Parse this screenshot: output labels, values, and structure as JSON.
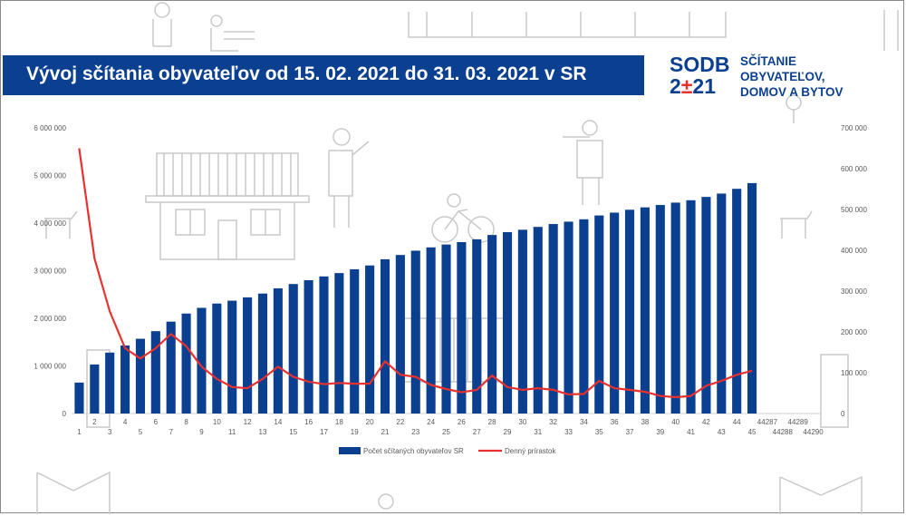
{
  "title": "Vývoj sčítania obyvateľov od 15. 02. 2021 do 31. 03. 2021 v SR",
  "logo": {
    "mark_line1": "SODB",
    "mark_line2_a": "2",
    "mark_line2_b": "±",
    "mark_line2_c": "21",
    "text_line1": "SČÍTANIE",
    "text_line2": "OBYVATEĽOV,",
    "text_line3": "DOMOV A BYTOV"
  },
  "colors": {
    "bar": "#0b3f8f",
    "line": "#e8312f",
    "banner": "#0b3f8f"
  },
  "chart_data": {
    "type": "bar",
    "categories": [
      1,
      2,
      3,
      4,
      5,
      6,
      7,
      8,
      9,
      10,
      11,
      12,
      13,
      14,
      15,
      16,
      17,
      18,
      19,
      20,
      21,
      22,
      23,
      24,
      25,
      26,
      27,
      28,
      29,
      30,
      31,
      32,
      33,
      34,
      35,
      36,
      37,
      38,
      39,
      40,
      41,
      42,
      43,
      44,
      45
    ],
    "extra_ticks": [
      {
        "after_index": 45,
        "label": "44287",
        "row": 0
      },
      {
        "after_index": 46,
        "label": "44288",
        "row": 1
      },
      {
        "after_index": 47,
        "label": "44289",
        "row": 0
      },
      {
        "after_index": 48,
        "label": "44290",
        "row": 1
      }
    ],
    "series": [
      {
        "name": "Počet sčítaných obyvateľov SR",
        "type": "bar",
        "axis": "left",
        "values": [
          650000,
          1030000,
          1280000,
          1430000,
          1570000,
          1730000,
          1930000,
          2100000,
          2220000,
          2310000,
          2370000,
          2440000,
          2520000,
          2630000,
          2720000,
          2800000,
          2880000,
          2950000,
          3030000,
          3110000,
          3240000,
          3330000,
          3420000,
          3490000,
          3550000,
          3600000,
          3660000,
          3750000,
          3810000,
          3860000,
          3920000,
          3980000,
          4030000,
          4080000,
          4160000,
          4220000,
          4280000,
          4330000,
          4380000,
          4430000,
          4480000,
          4550000,
          4620000,
          4720000,
          4840000
        ]
      },
      {
        "name": "Denný prírastok",
        "type": "line",
        "axis": "right",
        "values": [
          650000,
          380000,
          250000,
          160000,
          135000,
          160000,
          195000,
          165000,
          115000,
          85000,
          65000,
          62000,
          85000,
          115000,
          90000,
          78000,
          72000,
          75000,
          73000,
          73000,
          128000,
          95000,
          90000,
          70000,
          60000,
          52000,
          58000,
          93000,
          65000,
          58000,
          62000,
          58000,
          47000,
          48000,
          80000,
          62000,
          58000,
          53000,
          43000,
          40000,
          43000,
          68000,
          80000,
          95000,
          105000
        ]
      }
    ],
    "yleft": {
      "min": 0,
      "max": 6000000,
      "ticks": [
        "0",
        "1 000 000",
        "2 000 000",
        "3 000 000",
        "4 000 000",
        "5 000 000",
        "6 000 000"
      ]
    },
    "yright": {
      "min": 0,
      "max": 700000,
      "ticks": [
        "0",
        "100 000",
        "200 000",
        "300 000",
        "400 000",
        "500 000",
        "600 000",
        "700 000"
      ]
    },
    "legend_position": "bottom",
    "grid": false
  }
}
